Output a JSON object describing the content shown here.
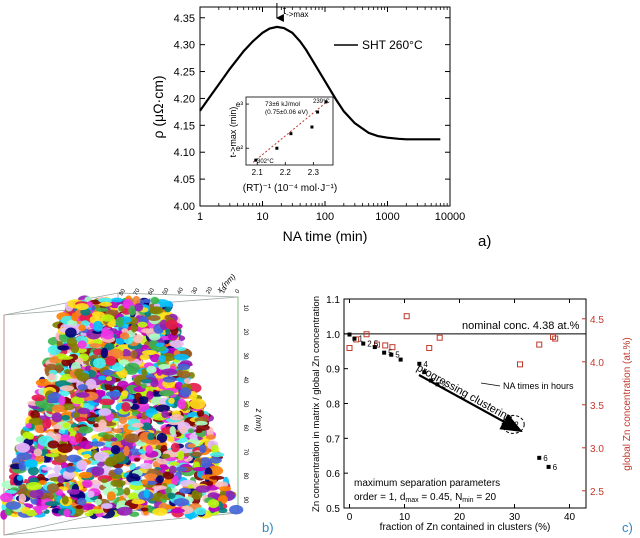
{
  "chart_data": [
    {
      "type": "line",
      "panel_label": "a)",
      "xlabel": "NA time (min)",
      "ylabel": "ρ (μΩ·cm)",
      "xscale": "log",
      "xlim": [
        1,
        10000
      ],
      "ylim": [
        4.0,
        4.37
      ],
      "x_ticks": [
        1,
        10,
        100,
        1000,
        10000
      ],
      "x_tick_labels": [
        "1",
        "10",
        "100",
        "1000",
        "10000"
      ],
      "y_ticks": [
        4.0,
        4.05,
        4.1,
        4.15,
        4.2,
        4.25,
        4.3,
        4.35
      ],
      "y_tick_labels": [
        "4.00",
        "4.05",
        "4.10",
        "4.15",
        "4.20",
        "4.25",
        "4.30",
        "4.35"
      ],
      "legend": "SHT 260°C",
      "annotation_main": "t",
      "annotation_sub": "->max",
      "annotation_x": 17,
      "series": [
        {
          "x": [
            1,
            1.5,
            2,
            3,
            5,
            7,
            10,
            13,
            17,
            22,
            30,
            40,
            50,
            70,
            100,
            150,
            200,
            300,
            500,
            700,
            1000,
            1500,
            2000,
            3000,
            5000,
            7000
          ],
          "y": [
            4.177,
            4.206,
            4.226,
            4.255,
            4.288,
            4.306,
            4.322,
            4.33,
            4.333,
            4.331,
            4.322,
            4.306,
            4.29,
            4.262,
            4.232,
            4.198,
            4.176,
            4.154,
            4.136,
            4.13,
            4.127,
            4.125,
            4.124,
            4.124,
            4.124,
            4.124
          ]
        }
      ],
      "inset": {
        "type": "scatter",
        "xlabel": "(RT)⁻¹ (10⁻⁴ mol·J⁻¹)",
        "ylabel": "t->max (min)",
        "xlim": [
          2.06,
          2.37
        ],
        "ylim": [
          1.62,
          3.16
        ],
        "x_ticks": [
          2.1,
          2.2,
          2.3
        ],
        "x_tick_labels": [
          "2.1",
          "2.2",
          "2.3"
        ],
        "y_ticks": [
          2,
          3
        ],
        "y_tick_labels": [
          "e²",
          "e³"
        ],
        "annotation": [
          "73±6 kJ/mol",
          "(0.75±0.06 eV)"
        ],
        "label_high": "239°C",
        "label_low": "302°C",
        "points": [
          {
            "x": 2.095,
            "y": 1.73
          },
          {
            "x": 2.17,
            "y": 2.0
          },
          {
            "x": 2.22,
            "y": 2.33
          },
          {
            "x": 2.295,
            "y": 2.48
          },
          {
            "x": 2.315,
            "y": 2.82
          },
          {
            "x": 2.345,
            "y": 3.05
          }
        ],
        "fit": {
          "x": [
            2.085,
            2.352
          ],
          "y": [
            1.68,
            3.07
          ]
        }
      }
    },
    {
      "type": "scatter",
      "panel_label": "b)",
      "xlabel": "x (nm)",
      "zlabel": "z (nm)",
      "x_tick_labels": [
        "80",
        "70",
        "60",
        "50",
        "40",
        "30",
        "20",
        "10",
        "0"
      ],
      "z_tick_labels": [
        "10",
        "20",
        "30",
        "40",
        "50",
        "60",
        "70",
        "80",
        "90"
      ]
    },
    {
      "type": "scatter",
      "panel_label": "c)",
      "xlabel": "fraction of Zn contained in clusters (%)",
      "ylabel": "Zn concentration in matrix / global Zn concentration",
      "ylabel_right": "global Zn concentration (at.%)",
      "xlim": [
        -1,
        43
      ],
      "ylim": [
        0.5,
        1.1
      ],
      "ylim_right": [
        2.3,
        4.73
      ],
      "x_ticks": [
        0,
        10,
        20,
        30,
        40
      ],
      "x_tick_labels": [
        "0",
        "10",
        "20",
        "30",
        "40"
      ],
      "y_ticks": [
        0.5,
        0.6,
        0.7,
        0.8,
        0.9,
        1.0,
        1.1
      ],
      "y_tick_labels": [
        "0.5",
        "0.6",
        "0.7",
        "0.8",
        "0.9",
        "1.0",
        "1.1"
      ],
      "y_right_ticks": [
        2.5,
        3.0,
        3.5,
        4.0,
        4.5
      ],
      "y_right_tick_labels": [
        "2.5",
        "3.0",
        "3.5",
        "4.0",
        "4.5"
      ],
      "reference_line": {
        "y": 1.0,
        "label": "nominal conc. 4.38 at.%"
      },
      "arrow_label": "progressing clustering",
      "na_label": "NA times in hours",
      "params_title": "maximum separation parameters",
      "params_text": "order = 1, d",
      "params_dsub": "max",
      "params_mid": " = 0.45, N",
      "params_nsub": "min",
      "params_tail": " = 20",
      "matrix_series": {
        "x": [
          0.0,
          0.9,
          2.5,
          4.6,
          6.3,
          7.6,
          9.3,
          12.7,
          13.6,
          14.8,
          16.0,
          34.5,
          36.2
        ],
        "y": [
          0.998,
          0.986,
          0.972,
          0.962,
          0.946,
          0.94,
          0.926,
          0.914,
          0.89,
          0.866,
          0.855,
          0.644,
          0.618
        ],
        "labels": [
          "",
          "1",
          "2.5",
          "",
          "5",
          "5",
          "",
          "4",
          "",
          "",
          "2",
          "6",
          "6"
        ]
      },
      "global_series": {
        "x": [
          0.0,
          1.2,
          3.1,
          5.0,
          6.5,
          7.8,
          10.4,
          14.5,
          16.4,
          34.5,
          37.0,
          37.4,
          31.0
        ],
        "y": [
          4.16,
          4.26,
          4.32,
          4.2,
          4.19,
          4.17,
          4.53,
          4.16,
          4.28,
          4.2,
          4.29,
          4.27,
          3.97
        ]
      },
      "circled_point": {
        "x": 29.4,
        "y": 0.74,
        "label": "2"
      }
    }
  ]
}
